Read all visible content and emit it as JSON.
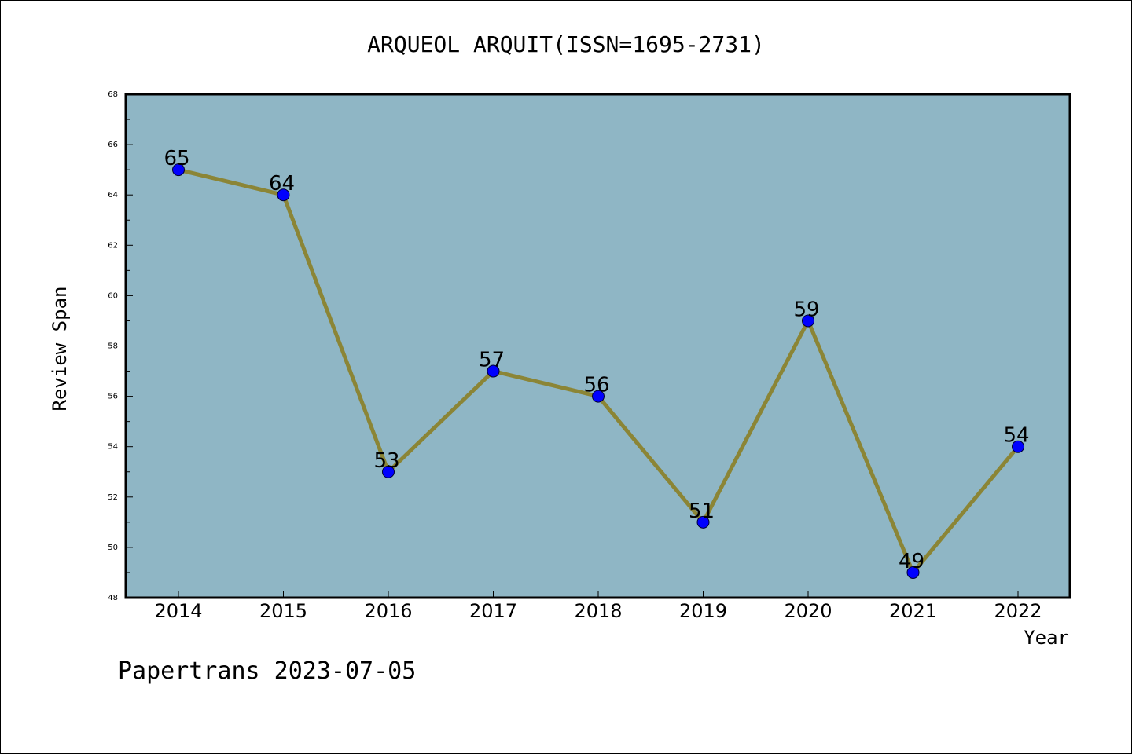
{
  "chart_data": {
    "type": "line",
    "title": "ARQUEOL ARQUIT(ISSN=1695-2731)",
    "xlabel": "Year",
    "ylabel": "Review Span",
    "categories": [
      "2014",
      "2015",
      "2016",
      "2017",
      "2018",
      "2019",
      "2020",
      "2021",
      "2022"
    ],
    "values": [
      65,
      64,
      53,
      57,
      56,
      51,
      59,
      49,
      54
    ],
    "data_labels": [
      "65",
      "64",
      "53",
      "57",
      "56",
      "51",
      "59",
      "49",
      "54"
    ],
    "ylim": [
      48,
      68
    ],
    "y_ticks": [
      48,
      50,
      52,
      54,
      56,
      58,
      60,
      62,
      64,
      66,
      68
    ],
    "y_tick_labels": [
      "48",
      "50",
      "52",
      "54",
      "56",
      "58",
      "60",
      "62",
      "64",
      "66",
      "68"
    ],
    "grid": false,
    "colors": {
      "plot_background": "#8fb6c5",
      "line": "#8b8536",
      "marker": "#0000ff",
      "frame": "#000000"
    }
  },
  "footer": {
    "watermark": "Papertrans 2023-07-05"
  }
}
